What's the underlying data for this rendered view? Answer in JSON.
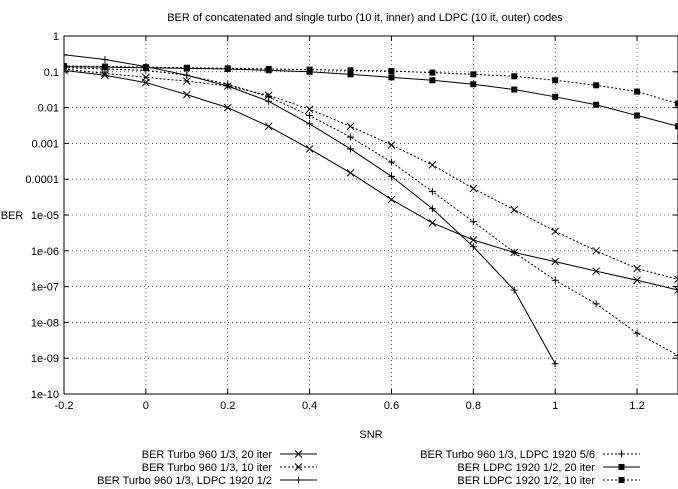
{
  "chart_data": {
    "type": "line",
    "title": "BER of concatenated and single turbo (10 it, inner) and LDPC (10 it, outer) codes",
    "xlabel": "SNR",
    "ylabel": "BER",
    "xlim": [
      -0.2,
      1.3
    ],
    "ylim": [
      1e-10,
      1
    ],
    "yscale": "log",
    "x_ticks": [
      "-0.2",
      "0",
      "0.2",
      "0.4",
      "0.6",
      "0.8",
      "1",
      "1.2"
    ],
    "y_ticks": [
      "1",
      "0.1",
      "0.01",
      "0.001",
      "0.0001",
      "1e-05",
      "1e-06",
      "1e-07",
      "1e-08",
      "1e-09",
      "1e-10"
    ],
    "grid": true,
    "legend_position": "bottom",
    "series": [
      {
        "name": "BER Turbo 960 1/3, 20 iter",
        "dash": "solid",
        "marker": "x",
        "x": [
          -0.2,
          -0.1,
          0,
          0.1,
          0.2,
          0.3,
          0.4,
          0.5,
          0.6,
          0.7,
          0.8,
          0.9,
          1.0,
          1.1,
          1.2,
          1.3
        ],
        "y": [
          0.11,
          0.08,
          0.05,
          0.023,
          0.01,
          0.003,
          0.0007,
          0.00015,
          2.7e-05,
          6e-06,
          2e-06,
          9e-07,
          5e-07,
          2.7e-07,
          1.5e-07,
          8e-08
        ]
      },
      {
        "name": "BER Turbo 960 1/3, 10 iter",
        "dash": "dotted",
        "marker": "x",
        "x": [
          -0.2,
          -0.1,
          0,
          0.1,
          0.2,
          0.3,
          0.4,
          0.5,
          0.6,
          0.7,
          0.8,
          0.9,
          1.0,
          1.1,
          1.2,
          1.3
        ],
        "y": [
          0.12,
          0.09,
          0.07,
          0.055,
          0.04,
          0.022,
          0.009,
          0.003,
          0.0009,
          0.00025,
          5.5e-05,
          1.4e-05,
          3.5e-06,
          1e-06,
          3.2e-07,
          1.6e-07
        ]
      },
      {
        "name": "BER Turbo 960 1/3, LDPC 1920 1/2",
        "dash": "solid",
        "marker": "+",
        "x": [
          -0.2,
          -0.1,
          0,
          0.1,
          0.2,
          0.3,
          0.4,
          0.5,
          0.6,
          0.7,
          0.8,
          0.9,
          1.0
        ],
        "y": [
          0.3,
          0.22,
          0.14,
          0.08,
          0.04,
          0.015,
          0.0035,
          0.0007,
          0.00012,
          1.5e-05,
          1.3e-06,
          8e-08,
          7e-10
        ]
      },
      {
        "name": "BER Turbo 960 1/3, LDPC 1920 5/6",
        "dash": "dotted",
        "marker": "+",
        "x": [
          -0.2,
          -0.1,
          0,
          0.1,
          0.2,
          0.3,
          0.4,
          0.5,
          0.6,
          0.7,
          0.8,
          0.9,
          1.0,
          1.1,
          1.2,
          1.3
        ],
        "y": [
          0.13,
          0.12,
          0.11,
          0.08,
          0.045,
          0.02,
          0.006,
          0.0015,
          0.0003,
          4.5e-05,
          6.5e-06,
          9e-07,
          1.5e-07,
          3.3e-08,
          5e-09,
          1.2e-09
        ]
      },
      {
        "name": "BER LDPC 1920 1/2, 20 iter",
        "dash": "solid",
        "marker": "square",
        "x": [
          -0.2,
          -0.1,
          0,
          0.1,
          0.2,
          0.3,
          0.4,
          0.5,
          0.6,
          0.7,
          0.8,
          0.9,
          1.0,
          1.1,
          1.2,
          1.3
        ],
        "y": [
          0.14,
          0.135,
          0.13,
          0.125,
          0.12,
          0.11,
          0.1,
          0.085,
          0.07,
          0.058,
          0.045,
          0.032,
          0.02,
          0.012,
          0.006,
          0.003
        ]
      },
      {
        "name": "BER LDPC 1920 1/2, 10 iter",
        "dash": "dotted",
        "marker": "square",
        "x": [
          -0.2,
          -0.1,
          0,
          0.1,
          0.2,
          0.3,
          0.4,
          0.5,
          0.6,
          0.7,
          0.8,
          0.9,
          1.0,
          1.1,
          1.2,
          1.3
        ],
        "y": [
          0.145,
          0.14,
          0.135,
          0.13,
          0.125,
          0.12,
          0.115,
          0.11,
          0.105,
          0.095,
          0.085,
          0.075,
          0.058,
          0.042,
          0.028,
          0.013
        ]
      }
    ]
  }
}
